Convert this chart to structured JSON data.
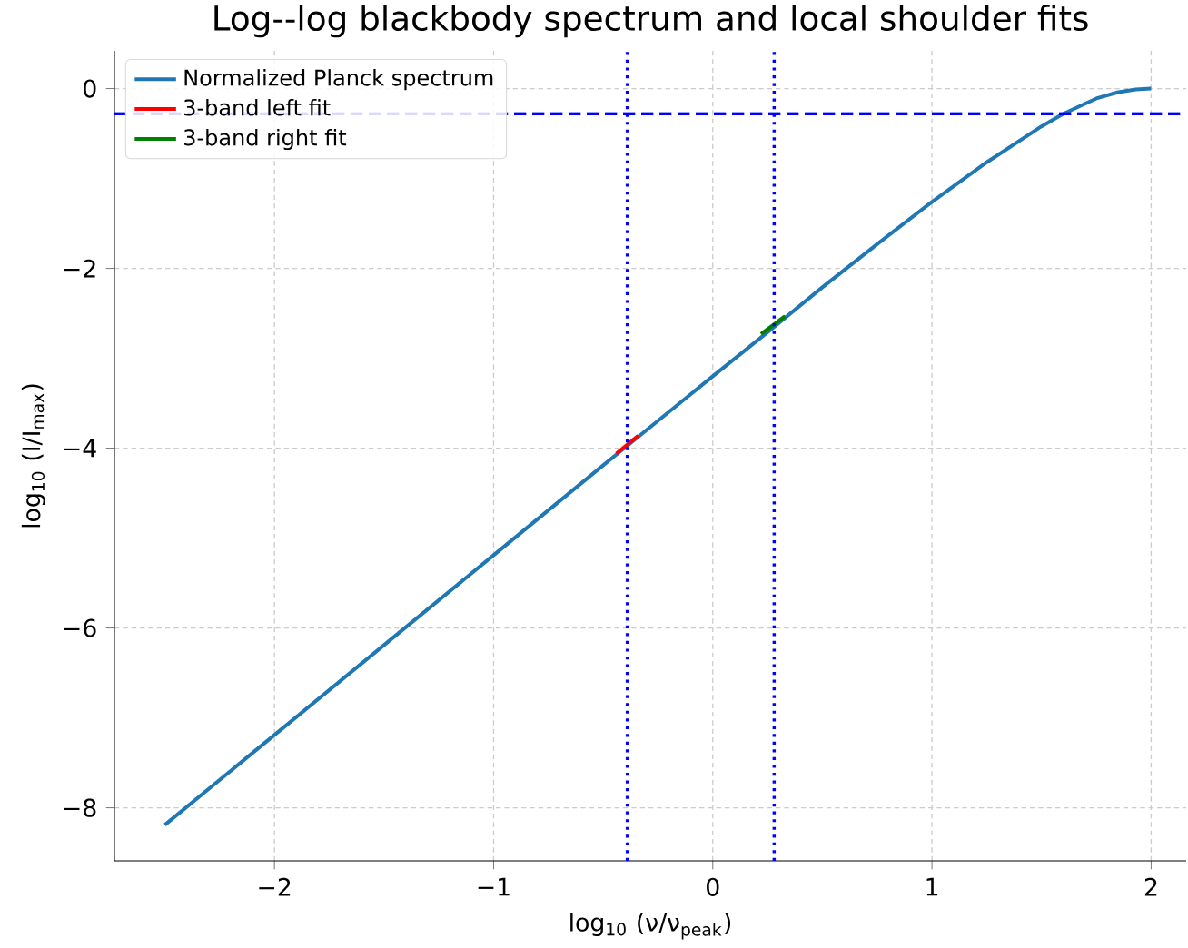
{
  "chart_data": {
    "type": "line",
    "title": "Log--log blackbody spectrum and local shoulder fits",
    "xlabel": "log$_{10}$ (ν/ν$_{peak}$)",
    "ylabel": "log$_{10}$ (I/I$_{max}$)",
    "series": [
      {
        "name": "Normalized Planck spectrum",
        "color": "#1f77b4",
        "x": [
          -2.5,
          -2.0,
          -1.5,
          -1.0,
          -0.5,
          0,
          0.25,
          0.5,
          0.75,
          1.0,
          1.25,
          1.5,
          1.6,
          1.75,
          1.85,
          1.93,
          2.0
        ],
        "values": [
          -8.19,
          -7.19,
          -6.19,
          -5.19,
          -4.19,
          -3.2,
          -2.71,
          -2.21,
          -1.73,
          -1.26,
          -0.82,
          -0.42,
          -0.28,
          -0.11,
          -0.04,
          -0.01,
          0
        ]
      },
      {
        "name": "3-band left fit",
        "color": "#ff0000",
        "x": [
          -0.44,
          -0.34
        ],
        "values": [
          -4.06,
          -3.86
        ]
      },
      {
        "name": "3-band right fit",
        "color": "#008000",
        "x": [
          0.22,
          0.33
        ],
        "values": [
          -2.73,
          -2.53
        ]
      }
    ],
    "ref_lines": [
      {
        "axis": "x",
        "value": -0.39,
        "color": "#0000ff",
        "line_style": "dotted"
      },
      {
        "axis": "x",
        "value": 0.28,
        "color": "#0000ff",
        "line_style": "dotted"
      },
      {
        "axis": "y",
        "value": -0.28,
        "color": "#0000ff",
        "line_style": "dashed"
      }
    ],
    "xlim": [
      -2.73,
      2.16
    ],
    "ylim": [
      -8.59,
      0.42
    ],
    "xticks": [
      {
        "value": -2,
        "label": "−2"
      },
      {
        "value": -1,
        "label": "−1"
      },
      0,
      1,
      2
    ],
    "yticks": [
      {
        "value": -8,
        "label": "−8"
      },
      {
        "value": -6,
        "label": "−6"
      },
      {
        "value": -4,
        "label": "−4"
      },
      {
        "value": -2,
        "label": "−2"
      },
      0
    ],
    "grid": true,
    "legend": "top left",
    "marker": "none",
    "line_style": "solid"
  }
}
